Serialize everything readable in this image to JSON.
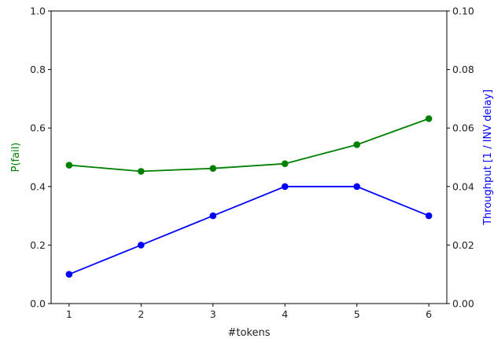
{
  "chart_data": {
    "type": "line",
    "xlabel": "#tokens",
    "ylabel_left": "P(fail)",
    "ylabel_right": "Throughput [1 / INV delay]",
    "x": [
      1,
      2,
      3,
      4,
      5,
      6
    ],
    "x_ticks": [
      "1",
      "2",
      "3",
      "4",
      "5",
      "6"
    ],
    "ylim_left": [
      0,
      1
    ],
    "ylim_right": [
      0,
      0.1
    ],
    "y_ticks_left": [
      "0.0",
      "0.2",
      "0.4",
      "0.6",
      "0.8",
      "1.0"
    ],
    "y_ticks_right": [
      "0.00",
      "0.02",
      "0.04",
      "0.06",
      "0.08",
      "0.10"
    ],
    "grid": false,
    "series": [
      {
        "axis": "left",
        "color": "#008000",
        "values": [
          0.473,
          0.452,
          0.462,
          0.478,
          0.543,
          0.632
        ]
      },
      {
        "axis": "right",
        "color": "#0000ff",
        "values": [
          0.01,
          0.02,
          0.03,
          0.04,
          0.04,
          0.03
        ]
      }
    ],
    "colors": {
      "left_label": "#008000",
      "right_label": "#0000ff",
      "axes": "#000000"
    }
  }
}
